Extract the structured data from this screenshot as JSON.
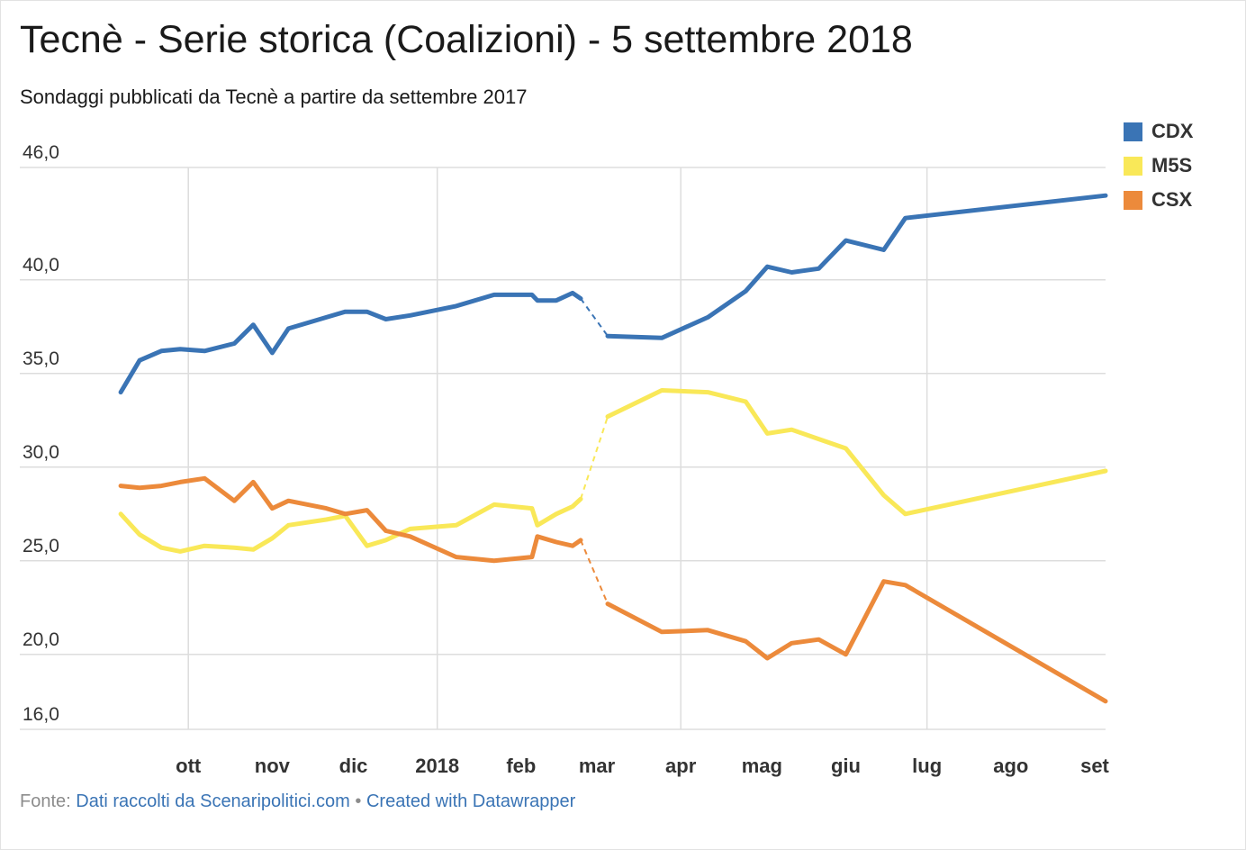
{
  "header": {
    "title": "Tecnè - Serie storica (Coalizioni) - 5 settembre 2018",
    "subtitle": "Sondaggi pubblicati da Tecnè a partire da settembre 2017"
  },
  "footer": {
    "source_prefix": "Fonte:",
    "source_link": "Dati raccolti da Scenaripolitici.com",
    "separator": "•",
    "credit_link": "Created with Datawrapper"
  },
  "colors": {
    "CDX": "#3a74b5",
    "M5S": "#f9e858",
    "CSX": "#ec8a3b",
    "grid": "#dddddd",
    "axis_text": "#333333"
  },
  "chart_data": {
    "type": "line",
    "title": "Tecnè - Serie storica (Coalizioni) - 5 settembre 2018",
    "ylim": [
      16,
      46
    ],
    "y_ticks": [
      {
        "value": 46,
        "label": "46,0"
      },
      {
        "value": 40,
        "label": "40,0"
      },
      {
        "value": 35,
        "label": "35,0"
      },
      {
        "value": 30,
        "label": "30,0"
      },
      {
        "value": 25,
        "label": "25,0"
      },
      {
        "value": 20,
        "label": "20,0"
      },
      {
        "value": 16,
        "label": "16,0"
      }
    ],
    "x_ticks": [
      {
        "date": "2017-10-01",
        "label": "ott"
      },
      {
        "date": "2017-11-01",
        "label": "nov"
      },
      {
        "date": "2017-12-01",
        "label": "dic"
      },
      {
        "date": "2018-01-01",
        "label": "2018"
      },
      {
        "date": "2018-02-01",
        "label": "feb"
      },
      {
        "date": "2018-03-01",
        "label": "mar"
      },
      {
        "date": "2018-04-01",
        "label": "apr"
      },
      {
        "date": "2018-05-01",
        "label": "mag"
      },
      {
        "date": "2018-06-01",
        "label": "giu"
      },
      {
        "date": "2018-07-01",
        "label": "lug"
      },
      {
        "date": "2018-08-01",
        "label": "ago"
      },
      {
        "date": "2018-09-01",
        "label": "set"
      }
    ],
    "x_vertical_grid": [
      "2017-10-01",
      "2018-01-01",
      "2018-04-01",
      "2018-07-01"
    ],
    "grid": true,
    "legend_position": "top-right",
    "dashed_gap": [
      "2018-02-23",
      "2018-03-05"
    ],
    "series": [
      {
        "name": "CDX",
        "points": [
          [
            "2017-09-06",
            34.0
          ],
          [
            "2017-09-13",
            35.7
          ],
          [
            "2017-09-21",
            36.2
          ],
          [
            "2017-09-28",
            36.3
          ],
          [
            "2017-10-07",
            36.2
          ],
          [
            "2017-10-18",
            36.6
          ],
          [
            "2017-10-25",
            37.6
          ],
          [
            "2017-11-01",
            36.1
          ],
          [
            "2017-11-07",
            37.4
          ],
          [
            "2017-11-21",
            38.0
          ],
          [
            "2017-11-28",
            38.3
          ],
          [
            "2017-12-06",
            38.3
          ],
          [
            "2017-12-13",
            37.9
          ],
          [
            "2017-12-22",
            38.1
          ],
          [
            "2018-01-08",
            38.6
          ],
          [
            "2018-01-22",
            39.2
          ],
          [
            "2018-02-05",
            39.2
          ],
          [
            "2018-02-07",
            38.9
          ],
          [
            "2018-02-14",
            38.9
          ],
          [
            "2018-02-20",
            39.3
          ],
          [
            "2018-02-23",
            39.0
          ],
          [
            "2018-03-05",
            37.0
          ],
          [
            "2018-03-25",
            36.9
          ],
          [
            "2018-04-11",
            38.0
          ],
          [
            "2018-04-25",
            39.4
          ],
          [
            "2018-05-03",
            40.7
          ],
          [
            "2018-05-12",
            40.4
          ],
          [
            "2018-05-22",
            40.6
          ],
          [
            "2018-06-01",
            42.1
          ],
          [
            "2018-06-15",
            41.6
          ],
          [
            "2018-06-23",
            43.3
          ],
          [
            "2018-09-05",
            44.5
          ]
        ]
      },
      {
        "name": "M5S",
        "points": [
          [
            "2017-09-06",
            27.5
          ],
          [
            "2017-09-13",
            26.4
          ],
          [
            "2017-09-21",
            25.7
          ],
          [
            "2017-09-28",
            25.5
          ],
          [
            "2017-10-07",
            25.8
          ],
          [
            "2017-10-18",
            25.7
          ],
          [
            "2017-10-25",
            25.6
          ],
          [
            "2017-11-01",
            26.2
          ],
          [
            "2017-11-07",
            26.9
          ],
          [
            "2017-11-21",
            27.2
          ],
          [
            "2017-11-28",
            27.4
          ],
          [
            "2017-12-06",
            25.8
          ],
          [
            "2017-12-13",
            26.1
          ],
          [
            "2017-12-22",
            26.7
          ],
          [
            "2018-01-08",
            26.9
          ],
          [
            "2018-01-22",
            28.0
          ],
          [
            "2018-02-05",
            27.8
          ],
          [
            "2018-02-07",
            26.9
          ],
          [
            "2018-02-14",
            27.5
          ],
          [
            "2018-02-20",
            27.9
          ],
          [
            "2018-02-23",
            28.3
          ],
          [
            "2018-03-05",
            32.7
          ],
          [
            "2018-03-25",
            34.1
          ],
          [
            "2018-04-11",
            34.0
          ],
          [
            "2018-04-25",
            33.5
          ],
          [
            "2018-05-03",
            31.8
          ],
          [
            "2018-05-12",
            32.0
          ],
          [
            "2018-05-22",
            31.5
          ],
          [
            "2018-06-01",
            31.0
          ],
          [
            "2018-06-15",
            28.5
          ],
          [
            "2018-06-23",
            27.5
          ],
          [
            "2018-09-05",
            29.8
          ]
        ]
      },
      {
        "name": "CSX",
        "points": [
          [
            "2017-09-06",
            29.0
          ],
          [
            "2017-09-13",
            28.9
          ],
          [
            "2017-09-21",
            29.0
          ],
          [
            "2017-09-28",
            29.2
          ],
          [
            "2017-10-07",
            29.4
          ],
          [
            "2017-10-18",
            28.2
          ],
          [
            "2017-10-25",
            29.2
          ],
          [
            "2017-11-01",
            27.8
          ],
          [
            "2017-11-07",
            28.2
          ],
          [
            "2017-11-21",
            27.8
          ],
          [
            "2017-11-28",
            27.5
          ],
          [
            "2017-12-06",
            27.7
          ],
          [
            "2017-12-13",
            26.6
          ],
          [
            "2017-12-22",
            26.3
          ],
          [
            "2018-01-08",
            25.2
          ],
          [
            "2018-01-22",
            25.0
          ],
          [
            "2018-02-05",
            25.2
          ],
          [
            "2018-02-07",
            26.3
          ],
          [
            "2018-02-14",
            26.0
          ],
          [
            "2018-02-20",
            25.8
          ],
          [
            "2018-02-23",
            26.1
          ],
          [
            "2018-03-05",
            22.7
          ],
          [
            "2018-03-25",
            21.2
          ],
          [
            "2018-04-11",
            21.3
          ],
          [
            "2018-04-25",
            20.7
          ],
          [
            "2018-05-03",
            19.8
          ],
          [
            "2018-05-12",
            20.6
          ],
          [
            "2018-05-22",
            20.8
          ],
          [
            "2018-06-01",
            20.0
          ],
          [
            "2018-06-15",
            23.9
          ],
          [
            "2018-06-23",
            23.7
          ],
          [
            "2018-09-05",
            17.5
          ]
        ]
      }
    ]
  }
}
